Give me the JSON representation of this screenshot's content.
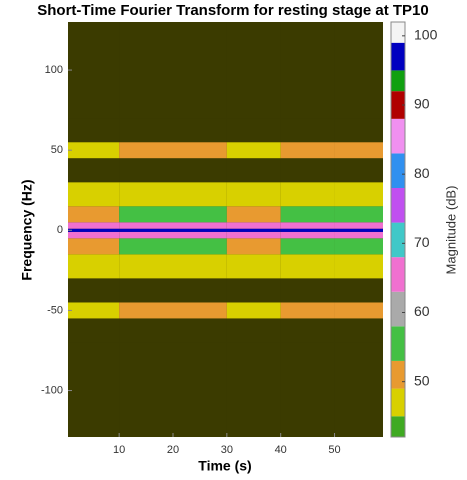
{
  "chart_data": {
    "type": "heatmap",
    "title": "Short-Time Fourier Transform for resting stage at TP10",
    "xlabel": "Time (s)",
    "ylabel": "Frequency (Hz)",
    "colorbar_label": "Magnitude (dB)",
    "x_bins": [
      0.5,
      10,
      20,
      30,
      40,
      50,
      59
    ],
    "y_bins": [
      -129,
      -70,
      -55,
      -45,
      -30,
      -15,
      -5,
      -1,
      1,
      5,
      15,
      30,
      45,
      55,
      70,
      130
    ],
    "z": [
      [
        30,
        30,
        30,
        30,
        30,
        30
      ],
      [
        35,
        34,
        35,
        34,
        35,
        34
      ],
      [
        48,
        49,
        50,
        48,
        49,
        50
      ],
      [
        40,
        41,
        40,
        39,
        41,
        40
      ],
      [
        46,
        47,
        46,
        45,
        47,
        46
      ],
      [
        52,
        53,
        54,
        52,
        53,
        54
      ],
      [
        66,
        64,
        67,
        65,
        66,
        64
      ],
      [
        97,
        97,
        97,
        97,
        97,
        97
      ],
      [
        66,
        65,
        67,
        64,
        66,
        65
      ],
      [
        52,
        54,
        53,
        52,
        54,
        53
      ],
      [
        46,
        47,
        46,
        45,
        47,
        46
      ],
      [
        40,
        41,
        40,
        39,
        41,
        40
      ],
      [
        48,
        49,
        50,
        48,
        49,
        50
      ],
      [
        35,
        34,
        35,
        34,
        35,
        34
      ],
      [
        30,
        30,
        30,
        30,
        30,
        30
      ]
    ],
    "xlim": [
      0.5,
      59
    ],
    "ylim": [
      -129,
      130
    ],
    "xticks": [
      10,
      20,
      30,
      40,
      50
    ],
    "yticks": [
      -100,
      -50,
      0,
      50,
      100
    ],
    "clim": [
      42,
      102
    ],
    "cticks": [
      50,
      60,
      70,
      80,
      90,
      100
    ],
    "under_color": "#3b3b00",
    "colormap": [
      {
        "value": 42,
        "color": "#3faa22"
      },
      {
        "value": 45,
        "color": "#d8d000"
      },
      {
        "value": 49,
        "color": "#e89a30"
      },
      {
        "value": 53,
        "color": "#44c044"
      },
      {
        "value": 58,
        "color": "#aaaaaa"
      },
      {
        "value": 63,
        "color": "#f070d0"
      },
      {
        "value": 68,
        "color": "#40c8c8"
      },
      {
        "value": 73,
        "color": "#c050f0"
      },
      {
        "value": 78,
        "color": "#3090f0"
      },
      {
        "value": 83,
        "color": "#f090f0"
      },
      {
        "value": 88,
        "color": "#b00000"
      },
      {
        "value": 92,
        "color": "#10a010"
      },
      {
        "value": 95,
        "color": "#0000c0"
      },
      {
        "value": 99,
        "color": "#f4f4f4"
      }
    ]
  }
}
